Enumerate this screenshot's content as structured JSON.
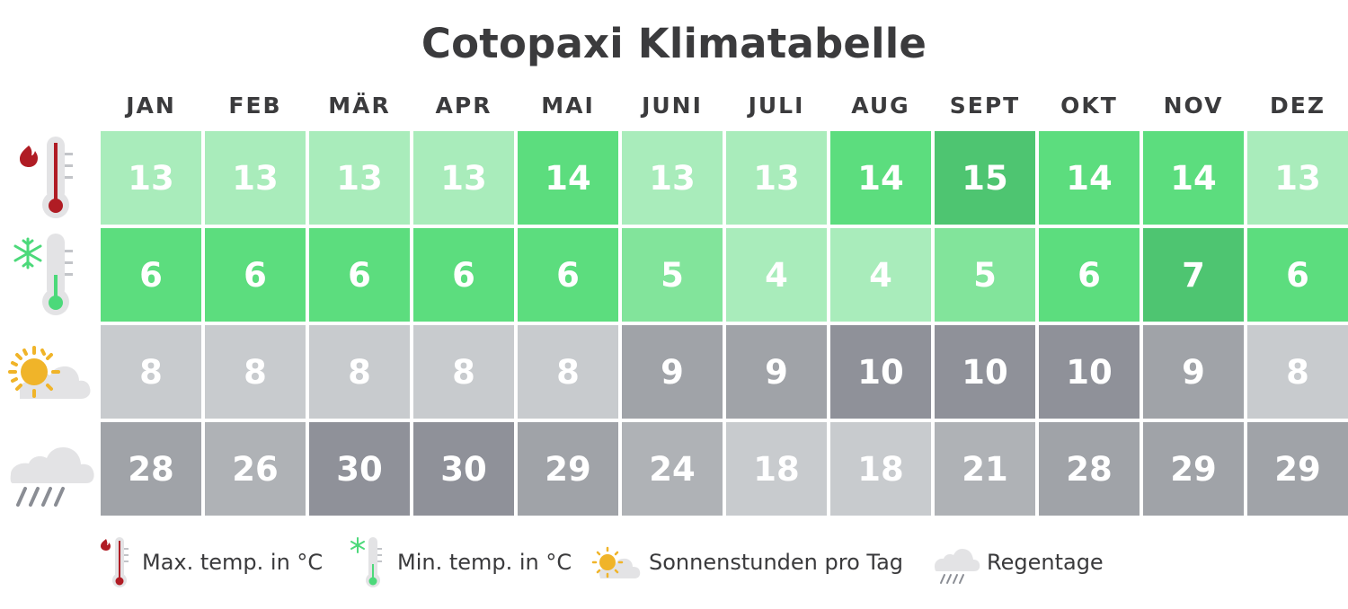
{
  "title": "Cotopaxi Klimatabelle",
  "months": [
    "JAN",
    "FEB",
    "MÄR",
    "APR",
    "MAI",
    "JUNI",
    "JULI",
    "AUG",
    "SEPT",
    "OKT",
    "NOV",
    "DEZ"
  ],
  "rows": [
    {
      "key": "max_temp",
      "icon": "thermometer-hot-icon",
      "values": [
        "13",
        "13",
        "13",
        "13",
        "14",
        "13",
        "13",
        "14",
        "15",
        "14",
        "14",
        "13"
      ],
      "colors": [
        "#a9ecbb",
        "#a9ecbb",
        "#a9ecbb",
        "#a9ecbb",
        "#5cdd7e",
        "#a9ecbb",
        "#a9ecbb",
        "#5cdd7e",
        "#4ec571",
        "#5cdd7e",
        "#5cdd7e",
        "#a9ecbb"
      ]
    },
    {
      "key": "min_temp",
      "icon": "thermometer-cold-icon",
      "values": [
        "6",
        "6",
        "6",
        "6",
        "6",
        "5",
        "4",
        "4",
        "5",
        "6",
        "7",
        "6"
      ],
      "colors": [
        "#5cdd7e",
        "#5cdd7e",
        "#5cdd7e",
        "#5cdd7e",
        "#5cdd7e",
        "#82e49b",
        "#a9ecbb",
        "#a9ecbb",
        "#82e49b",
        "#5cdd7e",
        "#4ec571",
        "#5cdd7e"
      ]
    },
    {
      "key": "sun_hours",
      "icon": "sun-cloud-icon",
      "values": [
        "8",
        "8",
        "8",
        "8",
        "8",
        "9",
        "9",
        "10",
        "10",
        "10",
        "9",
        "8"
      ],
      "colors": [
        "#c8cbce",
        "#c8cbce",
        "#c8cbce",
        "#c8cbce",
        "#c8cbce",
        "#a0a3a8",
        "#a0a3a8",
        "#8f9199",
        "#8f9199",
        "#8f9199",
        "#a0a3a8",
        "#c8cbce"
      ]
    },
    {
      "key": "rain_days",
      "icon": "rain-cloud-icon",
      "values": [
        "28",
        "26",
        "30",
        "30",
        "29",
        "24",
        "18",
        "18",
        "21",
        "28",
        "29",
        "29"
      ],
      "colors": [
        "#a0a3a8",
        "#afb2b6",
        "#8f9199",
        "#8f9199",
        "#a0a3a8",
        "#afb2b6",
        "#c8cbce",
        "#c8cbce",
        "#afb2b6",
        "#a0a3a8",
        "#a0a3a8",
        "#a0a3a8"
      ]
    }
  ],
  "legend": [
    {
      "icon": "thermometer-hot-icon",
      "label": "Max. temp. in °C"
    },
    {
      "icon": "thermometer-cold-icon",
      "label": "Min. temp. in °C"
    },
    {
      "icon": "sun-cloud-icon",
      "label": "Sonnenstunden pro Tag"
    },
    {
      "icon": "rain-cloud-icon",
      "label": "Regentage"
    }
  ],
  "colors": {
    "hot_red": "#b01c24",
    "cold_green": "#4cd97a",
    "sun_yellow": "#f0b429",
    "cloud_gray": "#e3e3e5",
    "rain_gray": "#8a8d94",
    "text_dark": "#3b3b3d"
  },
  "chart_data": {
    "type": "table",
    "title": "Cotopaxi Klimatabelle",
    "categories": [
      "JAN",
      "FEB",
      "MÄR",
      "APR",
      "MAI",
      "JUNI",
      "JULI",
      "AUG",
      "SEPT",
      "OKT",
      "NOV",
      "DEZ"
    ],
    "series": [
      {
        "name": "Max. temp. in °C",
        "values": [
          13,
          13,
          13,
          13,
          14,
          13,
          13,
          14,
          15,
          14,
          14,
          13
        ]
      },
      {
        "name": "Min. temp. in °C",
        "values": [
          6,
          6,
          6,
          6,
          6,
          5,
          4,
          4,
          5,
          6,
          7,
          6
        ]
      },
      {
        "name": "Sonnenstunden pro Tag",
        "values": [
          8,
          8,
          8,
          8,
          8,
          9,
          9,
          10,
          10,
          10,
          9,
          8
        ]
      },
      {
        "name": "Regentage",
        "values": [
          28,
          26,
          30,
          30,
          29,
          24,
          18,
          18,
          21,
          28,
          29,
          29
        ]
      }
    ],
    "legend_position": "bottom",
    "grid": true
  }
}
